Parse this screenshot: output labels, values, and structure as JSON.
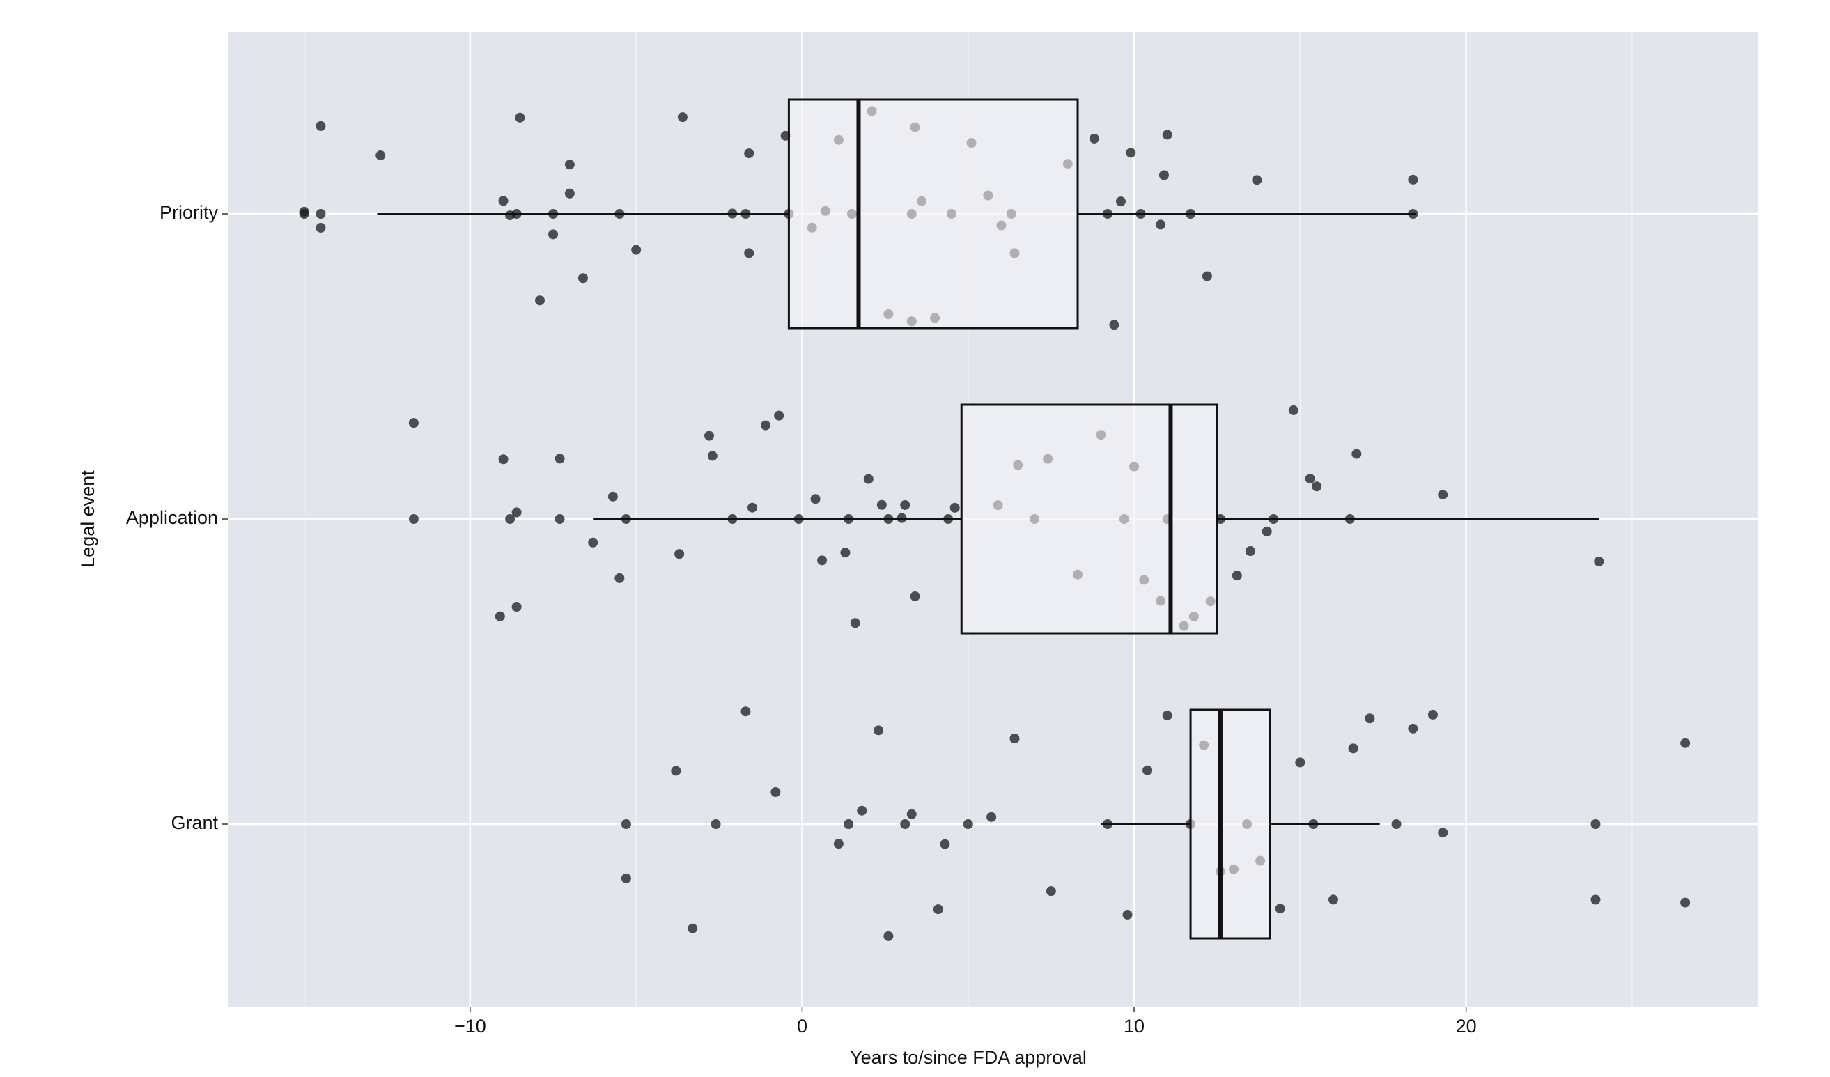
{
  "chart_data": {
    "type": "boxplot",
    "orientation": "horizontal",
    "x_label": "Years to/since FDA approval",
    "y_label": "Legal event",
    "categories": [
      "Priority",
      "Application",
      "Grant"
    ],
    "boxes": [
      {
        "whisker_low": -12.8,
        "q1": -0.4,
        "median": 1.7,
        "q3": 8.3,
        "whisker_high": 18.5
      },
      {
        "whisker_low": -6.3,
        "q1": 4.8,
        "median": 11.1,
        "q3": 12.5,
        "whisker_high": 24.0
      },
      {
        "whisker_low": 9.0,
        "q1": 11.7,
        "median": 12.6,
        "q3": 14.1,
        "whisker_high": 17.4
      }
    ],
    "points": [
      [
        -15,
        -15,
        -14.5,
        -14.5,
        -14.5,
        -12.7,
        -9,
        -8.8,
        -8.6,
        -8.5,
        -7.9,
        -7.5,
        -7.5,
        -7.0,
        -7.0,
        -6.6,
        -5.5,
        -5.0,
        -3.6,
        -2.1,
        -1.7,
        -1.6,
        -1.6,
        -0.5,
        -0.4,
        0.3,
        0.7,
        1.1,
        1.5,
        2.1,
        2.6,
        3.3,
        3.3,
        3.4,
        3.6,
        4.0,
        4.5,
        5.1,
        5.6,
        6.0,
        6.3,
        6.4,
        8.0,
        8.8,
        9.2,
        9.4,
        9.6,
        9.9,
        10.2,
        10.8,
        10.9,
        11.0,
        11.7,
        12.2,
        13.7,
        18.4,
        18.4
      ],
      [
        -11.7,
        -11.7,
        -9.1,
        -9.0,
        -8.8,
        -8.6,
        -8.6,
        -7.3,
        -7.3,
        -6.3,
        -5.7,
        -5.5,
        -5.3,
        -3.7,
        -2.8,
        -2.7,
        -2.1,
        -1.5,
        -1.1,
        -0.7,
        -0.1,
        0.4,
        0.6,
        1.3,
        1.4,
        1.6,
        2.0,
        2.4,
        2.6,
        3.0,
        3.1,
        3.4,
        4.4,
        4.6,
        5.9,
        6.5,
        7.0,
        7.4,
        8.3,
        9.0,
        9.7,
        10.0,
        10.3,
        10.8,
        11.0,
        11.5,
        11.8,
        12.3,
        12.6,
        13.1,
        13.5,
        14.0,
        14.2,
        14.8,
        15.3,
        15.5,
        16.5,
        16.7,
        19.3,
        24.0
      ],
      [
        -5.3,
        -5.3,
        -3.8,
        -3.3,
        -2.6,
        -1.7,
        -0.8,
        1.1,
        1.4,
        1.8,
        2.3,
        2.6,
        3.1,
        3.3,
        4.1,
        4.3,
        5.0,
        5.7,
        6.4,
        7.5,
        9.2,
        9.8,
        10.4,
        11.0,
        11.7,
        12.1,
        12.6,
        13.0,
        13.4,
        13.8,
        14.4,
        15.0,
        15.4,
        16.0,
        16.6,
        17.1,
        17.9,
        18.4,
        19.0,
        19.3,
        23.9,
        23.9,
        26.6,
        26.6
      ]
    ],
    "xlim": [
      -17.3,
      28.8
    ],
    "xticks": [
      {
        "value": -10,
        "label": "−10"
      },
      0,
      10,
      20
    ],
    "xminorticks": [
      -15,
      -5,
      5,
      15,
      25
    ],
    "grid": true,
    "point_color": "#1a1a1a",
    "box_fill": "#f4f4f8",
    "panel_color": "#e3e5ec"
  }
}
